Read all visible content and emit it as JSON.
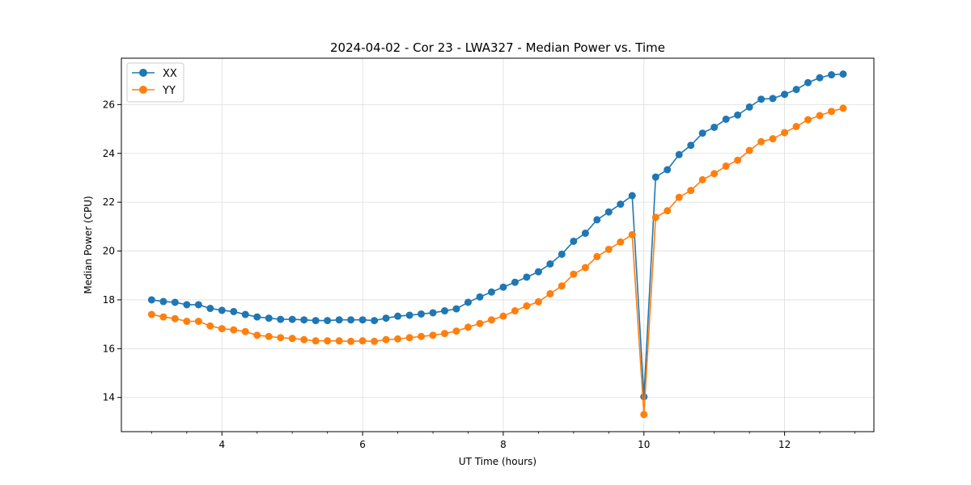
{
  "chart_data": {
    "type": "line",
    "title": "2024-04-02 - Cor 23 - LWA327 - Median Power vs. Time",
    "xlabel": "UT Time (hours)",
    "ylabel": "Median Power (CPU)",
    "xlim": [
      2.57,
      13.27
    ],
    "ylim": [
      12.6,
      27.9
    ],
    "xticks": [
      4,
      6,
      8,
      10,
      12
    ],
    "xtick_labels": [
      "4",
      "6",
      "8",
      "10",
      "12"
    ],
    "yticks": [
      14,
      16,
      18,
      20,
      22,
      24,
      26
    ],
    "ytick_labels": [
      "14",
      "16",
      "18",
      "20",
      "22",
      "24",
      "26"
    ],
    "minor_x_step": 0.5,
    "grid": true,
    "legend": "top-left",
    "x": [
      3.0,
      3.167,
      3.333,
      3.5,
      3.667,
      3.833,
      4.0,
      4.167,
      4.333,
      4.5,
      4.667,
      4.833,
      5.0,
      5.167,
      5.333,
      5.5,
      5.667,
      5.833,
      6.0,
      6.167,
      6.333,
      6.5,
      6.667,
      6.833,
      7.0,
      7.167,
      7.333,
      7.5,
      7.667,
      7.833,
      8.0,
      8.167,
      8.333,
      8.5,
      8.667,
      8.833,
      9.0,
      9.167,
      9.333,
      9.5,
      9.667,
      9.833,
      10.0,
      10.167,
      10.333,
      10.5,
      10.667,
      10.833,
      11.0,
      11.167,
      11.333,
      11.5,
      11.667,
      11.833,
      12.0,
      12.167,
      12.333,
      12.5,
      12.667,
      12.833
    ],
    "series": [
      {
        "name": "XX",
        "color": "#1f77b4",
        "values": [
          18.0,
          17.93,
          17.9,
          17.8,
          17.8,
          17.65,
          17.57,
          17.52,
          17.4,
          17.3,
          17.25,
          17.2,
          17.2,
          17.18,
          17.15,
          17.15,
          17.18,
          17.18,
          17.18,
          17.15,
          17.25,
          17.33,
          17.37,
          17.42,
          17.47,
          17.55,
          17.63,
          17.9,
          18.12,
          18.32,
          18.52,
          18.72,
          18.93,
          19.15,
          19.47,
          19.87,
          20.4,
          20.73,
          21.28,
          21.6,
          21.92,
          22.27,
          14.03,
          23.03,
          23.33,
          23.95,
          24.33,
          24.83,
          25.07,
          25.4,
          25.57,
          25.9,
          26.22,
          26.25,
          26.42,
          26.62,
          26.9,
          27.1,
          27.22,
          27.25
        ]
      },
      {
        "name": "YY",
        "color": "#ff7f0e",
        "values": [
          17.4,
          17.3,
          17.23,
          17.12,
          17.12,
          16.93,
          16.82,
          16.77,
          16.7,
          16.55,
          16.5,
          16.45,
          16.42,
          16.37,
          16.32,
          16.32,
          16.32,
          16.3,
          16.32,
          16.3,
          16.37,
          16.4,
          16.45,
          16.5,
          16.55,
          16.62,
          16.72,
          16.88,
          17.03,
          17.18,
          17.33,
          17.55,
          17.75,
          17.92,
          18.25,
          18.57,
          19.05,
          19.32,
          19.77,
          20.07,
          20.37,
          20.67,
          13.3,
          21.38,
          21.65,
          22.2,
          22.48,
          22.92,
          23.17,
          23.48,
          23.72,
          24.12,
          24.48,
          24.6,
          24.85,
          25.1,
          25.38,
          25.55,
          25.72,
          25.85
        ]
      }
    ]
  }
}
